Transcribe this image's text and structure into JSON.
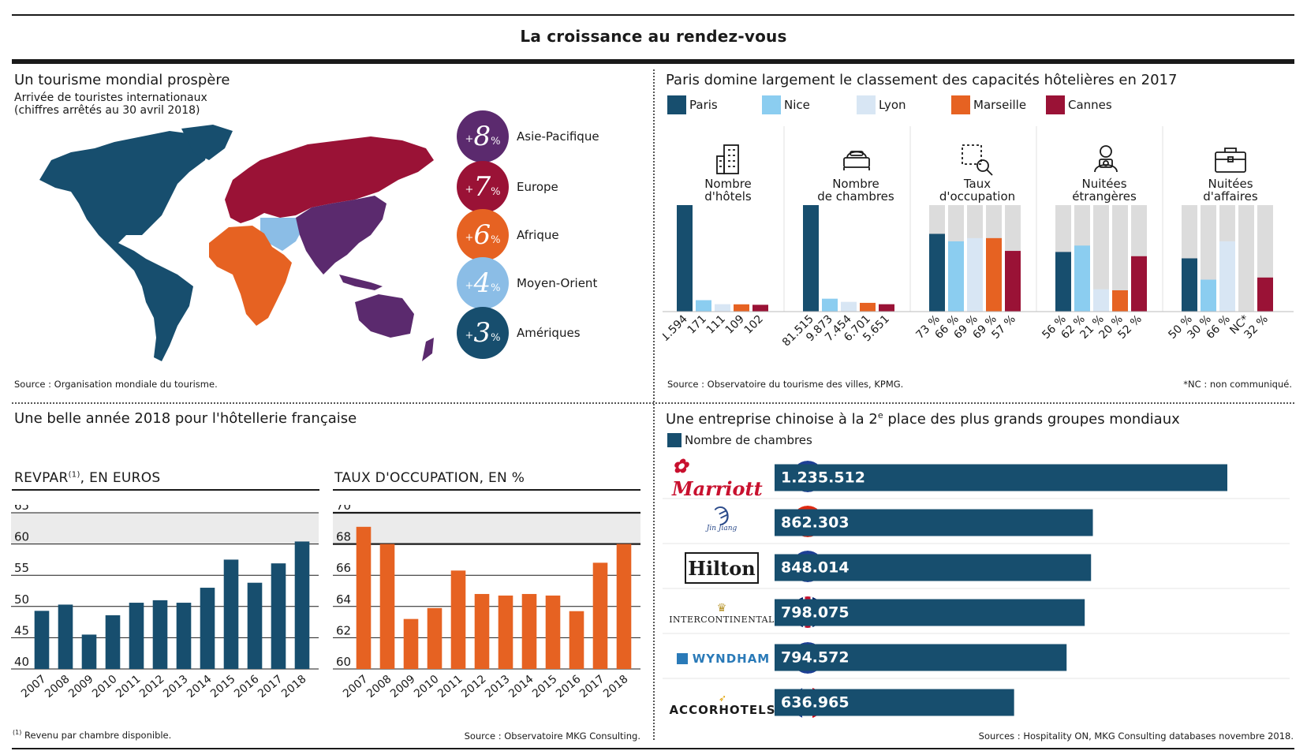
{
  "page_title": "La croissance au rendez-vous",
  "panel1": {
    "title": "Un tourisme mondial prospère",
    "subtitle_line1": "Arrivée de touristes internationaux",
    "subtitle_line2": "(chiffres arrêtés au 30 avril 2018)",
    "source": "Source : Organisation mondiale du tourisme.",
    "regions": [
      {
        "name": "Asie-Pacifique",
        "number": "8",
        "color": "#5b2a6e"
      },
      {
        "name": "Europe",
        "number": "7",
        "color": "#9a1236"
      },
      {
        "name": "Afrique",
        "number": "6",
        "color": "#e66222"
      },
      {
        "name": "Moyen-Orient",
        "number": "4",
        "color": "#8bbde6"
      },
      {
        "name": "Amériques",
        "number": "3",
        "color": "#174e6e"
      }
    ],
    "plus_sign": "+",
    "percent_sign": "%"
  },
  "panel2": {
    "title": "Paris domine largement le classement des capacités hôtelières en 2017",
    "legend": [
      {
        "name": "Paris",
        "color": "#174e6e"
      },
      {
        "name": "Nice",
        "color": "#8bcdf0"
      },
      {
        "name": "Lyon",
        "color": "#d8e6f4"
      },
      {
        "name": "Marseille",
        "color": "#e66222"
      },
      {
        "name": "Cannes",
        "color": "#9a1236"
      }
    ],
    "categories": [
      {
        "line1": "Nombre",
        "line2": "d'hôtels"
      },
      {
        "line1": "Nombre",
        "line2": "de chambres"
      },
      {
        "line1": "Taux",
        "line2": "d'occupation"
      },
      {
        "line1": "Nuitées",
        "line2": "étrangères"
      },
      {
        "line1": "Nuitées",
        "line2": "d'affaires"
      }
    ],
    "source": "Source : Observatoire du tourisme des villes, KPMG.",
    "footnote": "*NC : non communiqué."
  },
  "panel3": {
    "title": "Une belle année 2018 pour l'hôtellerie française",
    "revpar_title": "REVPAR",
    "revpar_sup": "(1)",
    "revpar_suffix": ", EN EUROS",
    "occ_title": "TAUX D'OCCUPATION, EN %",
    "footnote_mark": "(1)",
    "footnote": " Revenu par chambre disponible.",
    "source": "Source : Observatoire MKG Consulting."
  },
  "panel4": {
    "title_pre": "Une entreprise chinoise à la 2",
    "title_sup": "e",
    "title_post": " place des plus grands groupes mondiaux",
    "legend_label": "Nombre de chambres",
    "legend_color": "#174e6e",
    "groups": [
      {
        "logo": "Marriott",
        "flag": "eu-flag"
      },
      {
        "logo": "Jin Jiang",
        "flag": "china-flag"
      },
      {
        "logo": "Hilton",
        "flag": "eu-flag"
      },
      {
        "logo": "INTERCONTINENTAL",
        "flag": "uk-flag"
      },
      {
        "logo": "WYNDHAM",
        "flag": "eu-flag"
      },
      {
        "logo": "ACCORHOTELS",
        "flag": "france-flag"
      }
    ],
    "source": "Sources : Hospitality ON, MKG Consulting databases novembre 2018."
  },
  "chart_data": [
    {
      "id": "capacites",
      "type": "bar",
      "title": "Paris domine largement le classement des capacités hôtelières en 2017",
      "series_names": [
        "Paris",
        "Nice",
        "Lyon",
        "Marseille",
        "Cannes"
      ],
      "groups": [
        {
          "name": "Nombre d'hôtels",
          "values": [
            1594,
            171,
            111,
            109,
            102
          ],
          "labels": [
            "1.594",
            "171",
            "111",
            "109",
            "102"
          ],
          "max": 1594
        },
        {
          "name": "Nombre de chambres",
          "values": [
            81515,
            9873,
            7454,
            6701,
            5651
          ],
          "labels": [
            "81.515",
            "9.873",
            "7.454",
            "6.701",
            "5.651"
          ],
          "max": 81515
        },
        {
          "name": "Taux d'occupation",
          "values": [
            73,
            66,
            69,
            69,
            57
          ],
          "labels": [
            "73 %",
            "66 %",
            "69 %",
            "69 %",
            "57 %"
          ],
          "max": 100
        },
        {
          "name": "Nuitées étrangères",
          "values": [
            56,
            62,
            21,
            20,
            52
          ],
          "labels": [
            "56 %",
            "62 %",
            "21 %",
            "20 %",
            "52 %"
          ],
          "max": 100
        },
        {
          "name": "Nuitées d'affaires",
          "values": [
            50,
            30,
            66,
            null,
            32
          ],
          "labels": [
            "50 %",
            "30 %",
            "66 %",
            "NC*",
            "32 %"
          ],
          "max": 100
        }
      ]
    },
    {
      "id": "revpar",
      "type": "bar",
      "title": "REVPAR, EN EUROS",
      "categories": [
        "2007",
        "2008",
        "2009",
        "2010",
        "2011",
        "2012",
        "2013",
        "2014",
        "2015",
        "2016",
        "2017",
        "2018"
      ],
      "values": [
        49.3,
        50.3,
        45.5,
        48.6,
        50.6,
        51.0,
        50.6,
        53.0,
        57.5,
        53.8,
        56.9,
        60.4
      ],
      "ylim": [
        40,
        65
      ],
      "yticks": [
        40,
        45,
        50,
        55,
        60,
        65
      ],
      "color": "#174e6e"
    },
    {
      "id": "occupation",
      "type": "bar",
      "title": "TAUX D'OCCUPATION, EN %",
      "categories": [
        "2007",
        "2008",
        "2009",
        "2010",
        "2011",
        "2012",
        "2013",
        "2014",
        "2015",
        "2016",
        "2017",
        "2018"
      ],
      "values": [
        69.1,
        68.0,
        63.2,
        63.9,
        66.3,
        64.8,
        64.7,
        64.8,
        64.7,
        63.7,
        66.8,
        68.0
      ],
      "ylim": [
        60,
        70
      ],
      "yticks": [
        60,
        62,
        64,
        66,
        68,
        70
      ],
      "color": "#e66222"
    },
    {
      "id": "groupes",
      "type": "bar",
      "title": "Nombre de chambres",
      "categories": [
        "Marriott",
        "Jin Jiang",
        "Hilton",
        "InterContinental",
        "Wyndham",
        "AccorHotels"
      ],
      "values": [
        1235512,
        862303,
        848014,
        798075,
        794572,
        636965
      ],
      "labels": [
        "1.235.512",
        "862.303",
        "848.014",
        "798.075",
        "794.572",
        "636.965"
      ],
      "bar_fraction": [
        1.0,
        0.703,
        0.699,
        0.685,
        0.645,
        0.529
      ],
      "color": "#174e6e"
    }
  ]
}
